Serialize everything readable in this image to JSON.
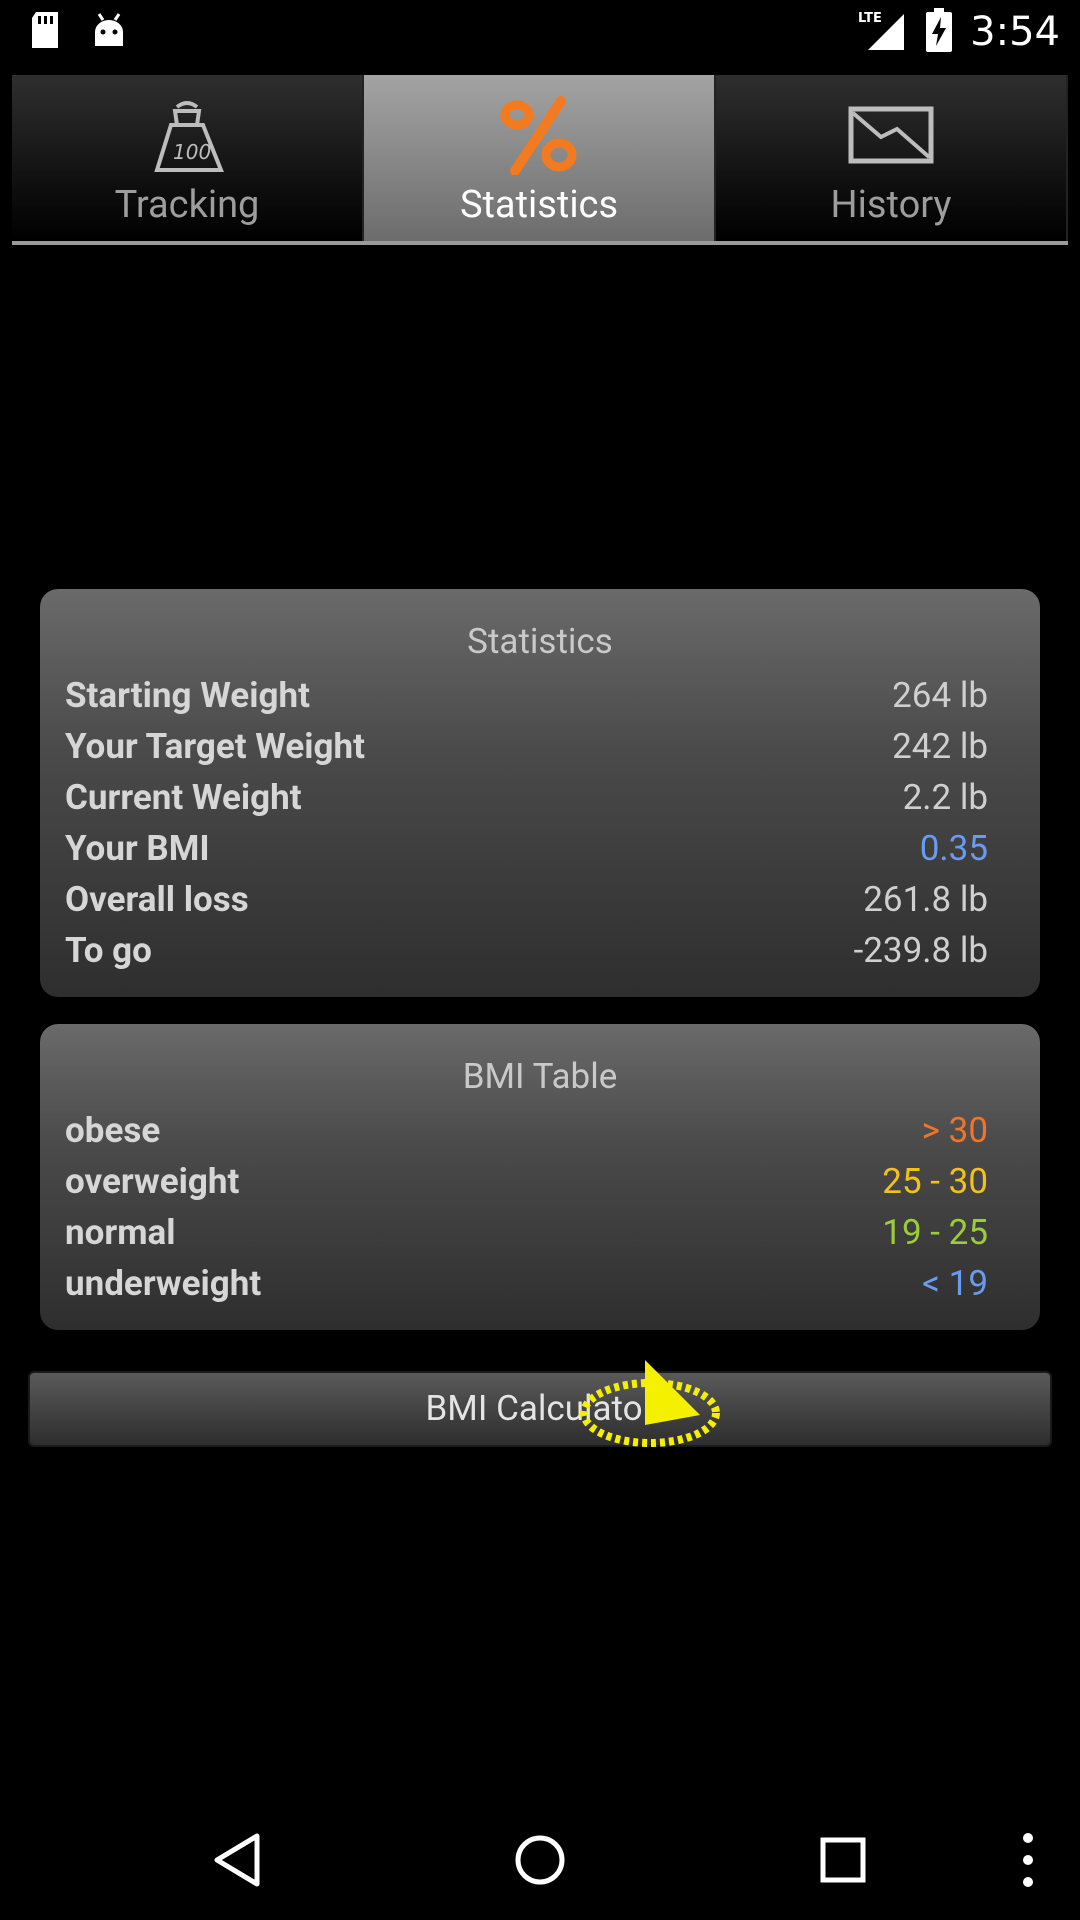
{
  "status_bar": {
    "time": "3:54",
    "network": "LTE",
    "icons": [
      "sd-card-icon",
      "android-icon",
      "lte-signal-icon",
      "battery-charging-icon"
    ]
  },
  "tabs": [
    {
      "label": "Tracking",
      "icon": "scale-weight-icon",
      "active": false
    },
    {
      "label": "Statistics",
      "icon": "percent-icon",
      "active": true
    },
    {
      "label": "History",
      "icon": "chart-history-icon",
      "active": false
    }
  ],
  "statistics": {
    "title": "Statistics",
    "rows": [
      {
        "label": "Starting Weight",
        "value": "264 lb",
        "color": "#cfcfcf"
      },
      {
        "label": "Your Target Weight",
        "value": "242 lb",
        "color": "#cfcfcf"
      },
      {
        "label": "Current Weight",
        "value": "2.2 lb",
        "color": "#cfcfcf"
      },
      {
        "label": "Your BMI",
        "value": "0.35",
        "color": "#6b9bf0"
      },
      {
        "label": "Overall loss",
        "value": "261.8 lb",
        "color": "#cfcfcf"
      },
      {
        "label": "To go",
        "value": "-239.8 lb",
        "color": "#cfcfcf"
      }
    ]
  },
  "bmi_table": {
    "title": "BMI Table",
    "rows": [
      {
        "label": "obese",
        "value": "> 30",
        "color": "#f0742a"
      },
      {
        "label": "overweight",
        "value": "25 - 30",
        "color": "#f2c21a"
      },
      {
        "label": "normal",
        "value": "19 - 25",
        "color": "#9ccc3a"
      },
      {
        "label": "underweight",
        "value": "< 19",
        "color": "#6b9bf0"
      }
    ]
  },
  "bmi_button": {
    "label": "BMI Calculator"
  },
  "nav": {
    "items": [
      "back-icon",
      "home-icon",
      "recents-icon",
      "overflow-menu-icon"
    ]
  }
}
